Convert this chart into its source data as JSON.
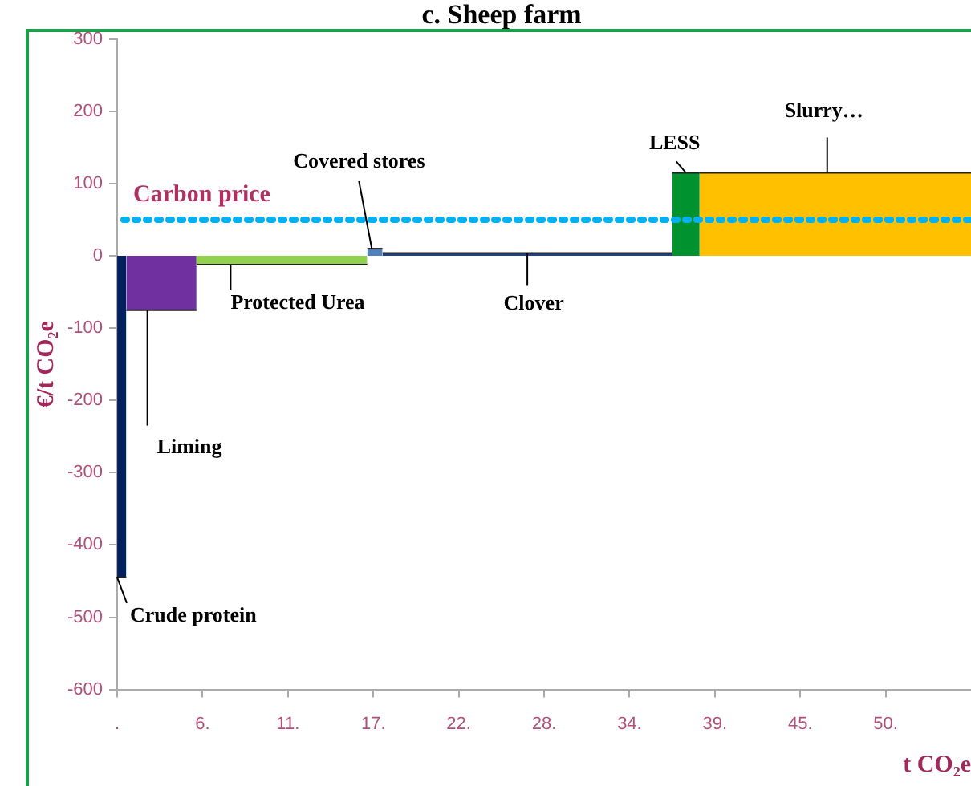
{
  "chart_data": {
    "type": "area",
    "title": "c. Sheep farm",
    "xlabel": "t CO₂e",
    "ylabel": "€/t CO₂e",
    "series": [
      {
        "name": "Crude protein",
        "color": "#002060",
        "x": [
          0,
          0.6
        ],
        "values": [
          -445,
          -445
        ]
      },
      {
        "name": "Liming",
        "color": "#7030a0",
        "x": [
          0.6,
          5.2
        ],
        "values": [
          -75,
          -75
        ]
      },
      {
        "name": "Protected Urea",
        "color": "#92d050",
        "x": [
          5.2,
          16.4
        ],
        "values": [
          -12,
          -12
        ]
      },
      {
        "name": "Covered stores",
        "color": "#4f81bd",
        "x": [
          16.4,
          17.4
        ],
        "values": [
          10,
          10
        ]
      },
      {
        "name": "Clover",
        "color": "#1f3f8f",
        "x": [
          17.4,
          36.4
        ],
        "values": [
          4,
          4
        ]
      },
      {
        "name": "LESS",
        "color": "#00922e",
        "x": [
          36.4,
          38.2
        ],
        "values": [
          115,
          115
        ]
      },
      {
        "name": "Slurry…",
        "color": "#ffc000",
        "x": [
          38.2,
          56
        ],
        "values": [
          115,
          115
        ]
      }
    ],
    "xlim": [
      0,
      56
    ],
    "xticks": [
      {
        "value": 0,
        "label": "."
      },
      {
        "value": 5.6,
        "label": "6."
      },
      {
        "value": 11.2,
        "label": "11."
      },
      {
        "value": 16.8,
        "label": "17."
      },
      {
        "value": 22.4,
        "label": "22."
      },
      {
        "value": 28,
        "label": "28."
      },
      {
        "value": 33.6,
        "label": "34."
      },
      {
        "value": 39.2,
        "label": "39."
      },
      {
        "value": 44.8,
        "label": "45."
      },
      {
        "value": 50.4,
        "label": "50."
      }
    ],
    "ylim": [
      -600,
      300
    ],
    "yticks": [
      -600,
      -500,
      -400,
      -300,
      -200,
      -100,
      0,
      100,
      200,
      300
    ],
    "ref_lines": [
      {
        "axis": "y",
        "value": 50,
        "label": "Carbon price",
        "color": "#00b0f0",
        "line_style": "dotted"
      }
    ]
  }
}
